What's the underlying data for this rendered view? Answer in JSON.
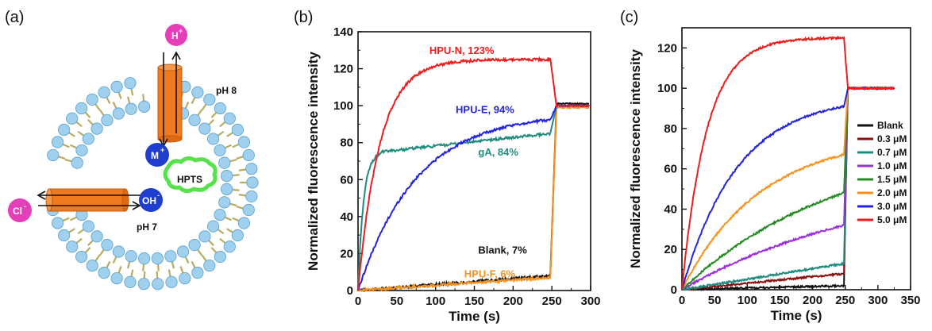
{
  "panels": {
    "a": "(a)",
    "b": "(b)",
    "c": "(c)"
  },
  "schematic": {
    "ph_outside": "pH 8",
    "ph_inside": "pH 7",
    "h_ion": "H",
    "h_sup": "+",
    "m_ion": "M",
    "m_sup": "+",
    "oh_ion": "OH",
    "oh_sup": "-",
    "cl_ion": "Cl",
    "cl_sup": "-",
    "dye": "HPTS",
    "colors": {
      "lipid_head": "#9fd0ee",
      "lipid_tail": "#b8ac62",
      "channel": "#f07a1f",
      "ion_pink": "#e43fb8",
      "ion_blue": "#1f3ecf",
      "dye": "#57e14a"
    }
  },
  "chart_data": [
    {
      "panel": "b",
      "type": "line",
      "xlabel": "Time (s)",
      "ylabel": "Normalized fluorescence intensity",
      "xlim": [
        0,
        300
      ],
      "ylim": [
        0,
        140
      ],
      "xticks": [
        0,
        50,
        100,
        150,
        200,
        250,
        300
      ],
      "yticks": [
        0,
        20,
        40,
        60,
        80,
        100,
        120,
        140
      ],
      "series": [
        {
          "key": "hpun",
          "label": "HPU-N, 123%",
          "color": "#ee1c1c",
          "plateau": 125,
          "tau": 28,
          "final": 100,
          "shape": "exp"
        },
        {
          "key": "hpue",
          "label": "HPU-E, 94%",
          "color": "#2424e0",
          "plateau": 96,
          "tau": 75,
          "final": 100,
          "shape": "exp"
        },
        {
          "key": "ga",
          "label": "gA, 84%",
          "color": "#1f8c80",
          "plateau": 75,
          "tau": 7,
          "final": 100,
          "shape": "ga",
          "drift_to": 85
        },
        {
          "key": "blank",
          "label": "Blank, 7%",
          "color": "#111111",
          "plateau": 8,
          "tau": 160,
          "final": 101,
          "shape": "lin"
        },
        {
          "key": "hpuf",
          "label": "HPU-F, 6%",
          "color": "#f7921e",
          "plateau": 7,
          "tau": 160,
          "final": 99,
          "shape": "lin"
        }
      ]
    },
    {
      "panel": "c",
      "type": "line",
      "xlabel": "Time (s)",
      "ylabel": "Normalized fluorescence intensity",
      "xlim": [
        0,
        350
      ],
      "ylim": [
        0,
        130
      ],
      "xticks": [
        0,
        50,
        100,
        150,
        200,
        250,
        300,
        350
      ],
      "yticks": [
        0,
        20,
        40,
        60,
        80,
        100,
        120
      ],
      "legend_position": "right",
      "series": [
        {
          "name": "Blank",
          "color": "#111111",
          "plateau": 2,
          "tau": 200,
          "shape": "lin"
        },
        {
          "name": "0.3 μM",
          "color": "#8b1010",
          "plateau": 8,
          "tau": 200,
          "shape": "lin"
        },
        {
          "name": "0.7 μM",
          "color": "#1f8c80",
          "plateau": 13,
          "tau": 200,
          "shape": "lin"
        },
        {
          "name": "1.0 μM",
          "color": "#9b2ee0",
          "plateau": 32,
          "tau": 300,
          "shape": "exp"
        },
        {
          "name": "1.5 μM",
          "color": "#228b22",
          "plateau": 48,
          "tau": 240,
          "shape": "exp"
        },
        {
          "name": "2.0 μM",
          "color": "#f7921e",
          "plateau": 67,
          "tau": 120,
          "shape": "exp"
        },
        {
          "name": "3.0 μM",
          "color": "#2424e0",
          "plateau": 91,
          "tau": 85,
          "shape": "exp"
        },
        {
          "name": "5.0 μM",
          "color": "#ee1c1c",
          "plateau": 125,
          "tau": 38,
          "shape": "exp"
        }
      ]
    }
  ]
}
